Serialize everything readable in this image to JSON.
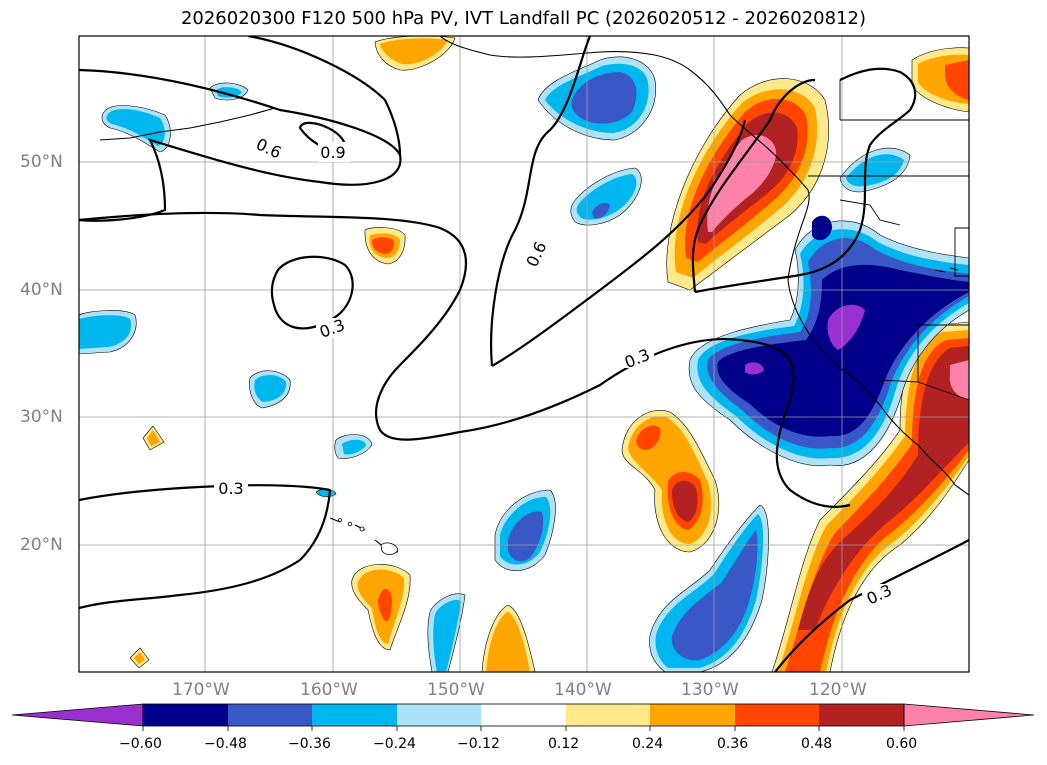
{
  "title": "2026020300 F120 500 hPa PV, IVT Landfall PC (2026020512 - 2026020812)",
  "lat_labels": [
    "50°N",
    "40°N",
    "30°N",
    "20°N"
  ],
  "lon_labels": [
    "170°W",
    "160°W",
    "150°W",
    "140°W",
    "130°W",
    "120°W"
  ],
  "contour_labels": [
    "0.6",
    "0.9",
    "0.6",
    "0.3",
    "0.3",
    "0.3",
    "0.3"
  ],
  "colorbar": {
    "ticks": [
      "−0.60",
      "−0.48",
      "−0.36",
      "−0.24",
      "−0.12",
      "0.12",
      "0.24",
      "0.36",
      "0.48",
      "0.60"
    ],
    "colors": [
      "#9b30d0",
      "#00008b",
      "#3a57c8",
      "#00b6ef",
      "#aee2f8",
      "#ffffff",
      "#ffe98a",
      "#ffa500",
      "#ff4500",
      "#b22222",
      "#ff82ab"
    ]
  },
  "colors": {
    "purple": "#9b30d0",
    "navy": "#00008b",
    "blue": "#3a57c8",
    "cyan": "#00b6ef",
    "lightblue": "#aee2f8",
    "yellow": "#ffe98a",
    "orange": "#ffa500",
    "redorange": "#ff4500",
    "darkred": "#b22222",
    "pink": "#ff82ab"
  }
}
